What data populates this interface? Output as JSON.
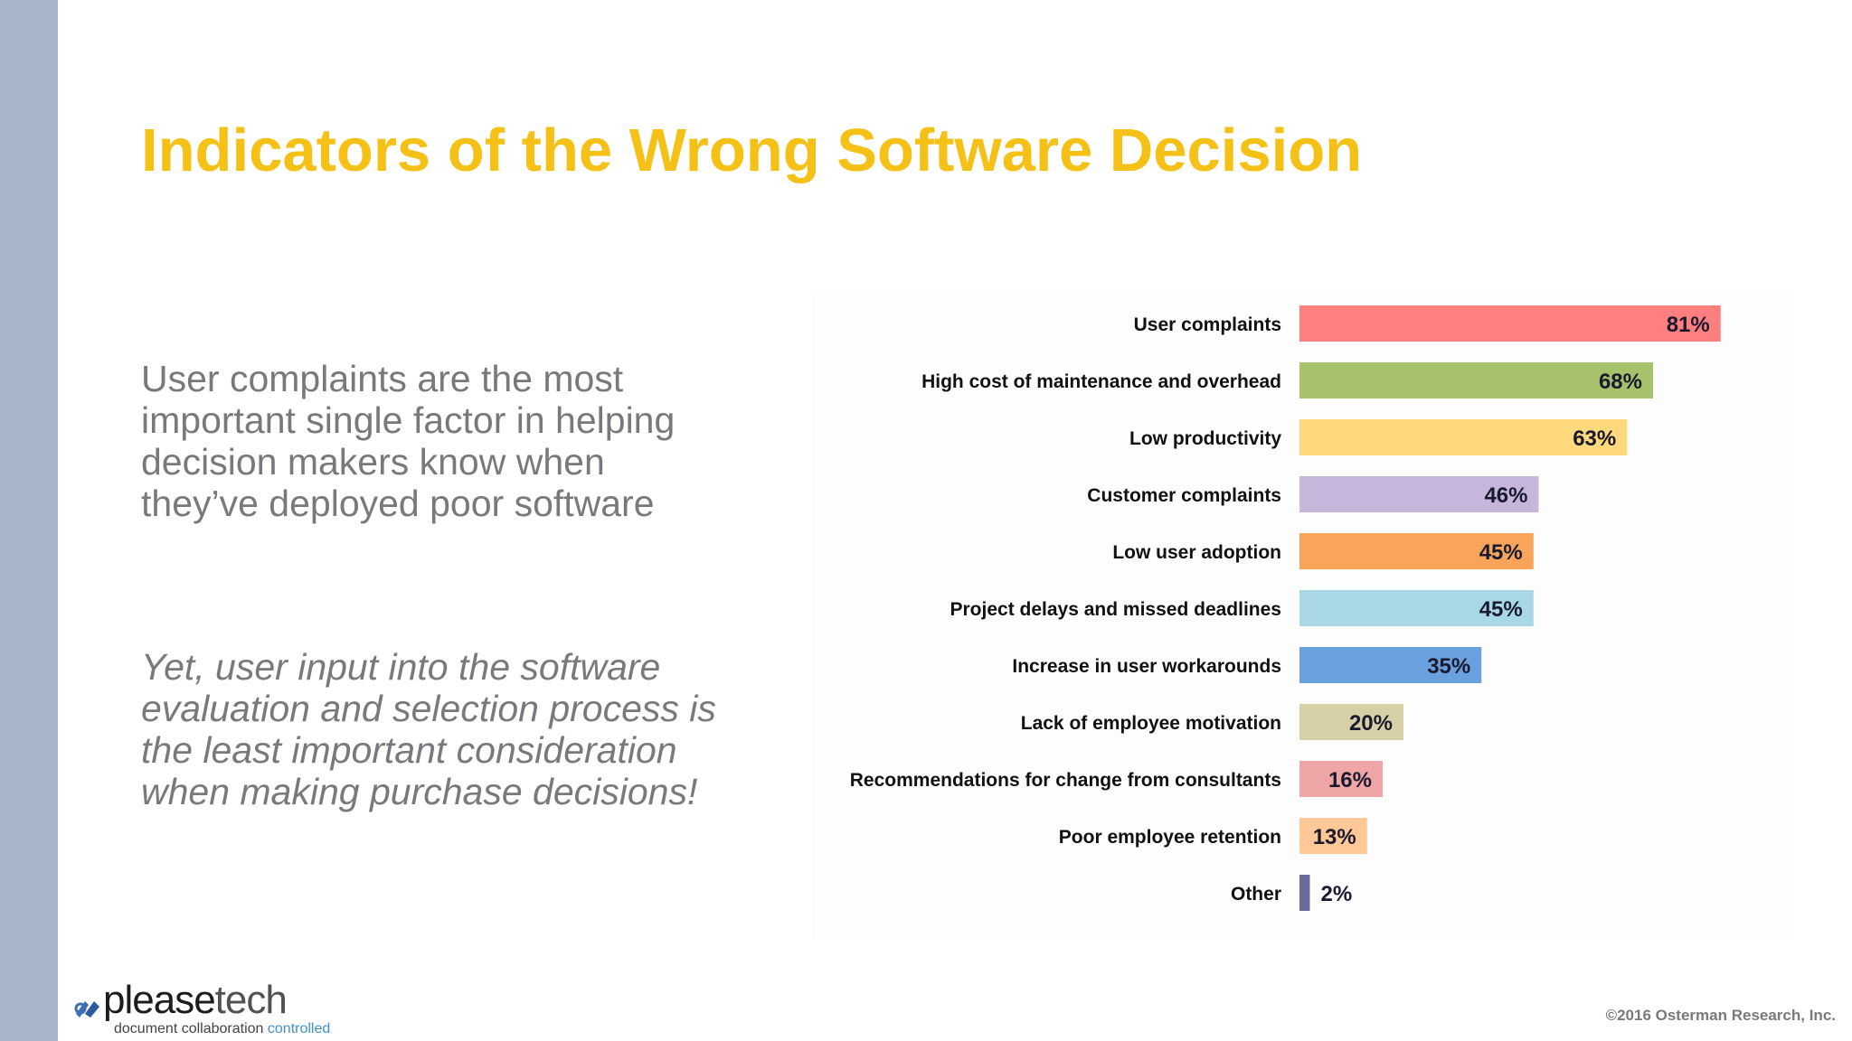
{
  "title": "Indicators of the Wrong Software Decision",
  "paragraphs": {
    "main": "User complaints are the most important single factor in helping decision makers know when they’ve deployed poor software",
    "emphasis": "Yet, user input into the software evaluation and selection process is the least important consideration when making purchase decisions!"
  },
  "logo": {
    "brand_a": "please",
    "brand_b": "tech",
    "tagline_a": "document collaboration ",
    "tagline_b": "controlled"
  },
  "copyright": "©2016 Osterman Research, Inc.",
  "chart_data": {
    "type": "bar",
    "orientation": "horizontal",
    "categories": [
      "User complaints",
      "High cost of maintenance and overhead",
      "Low productivity",
      "Customer complaints",
      "Low user adoption",
      "Project delays and missed deadlines",
      "Increase in user workarounds",
      "Lack of employee motivation",
      "Recommendations for change from consultants",
      "Poor employee retention",
      "Other"
    ],
    "values": [
      81,
      68,
      63,
      46,
      45,
      45,
      35,
      20,
      16,
      13,
      2
    ],
    "value_labels": [
      "81%",
      "68%",
      "63%",
      "46%",
      "45%",
      "45%",
      "35%",
      "20%",
      "16%",
      "13%",
      "2%"
    ],
    "colors": [
      "#ff7f7f",
      "#a6c26b",
      "#ffd97c",
      "#c6b6dc",
      "#f8a55a",
      "#a8d8e6",
      "#6aa0de",
      "#d7d0a6",
      "#f0a6a6",
      "#ffc896",
      "#6c6c9c"
    ],
    "xlim": [
      0,
      100
    ],
    "grid": false,
    "legend": "none"
  }
}
